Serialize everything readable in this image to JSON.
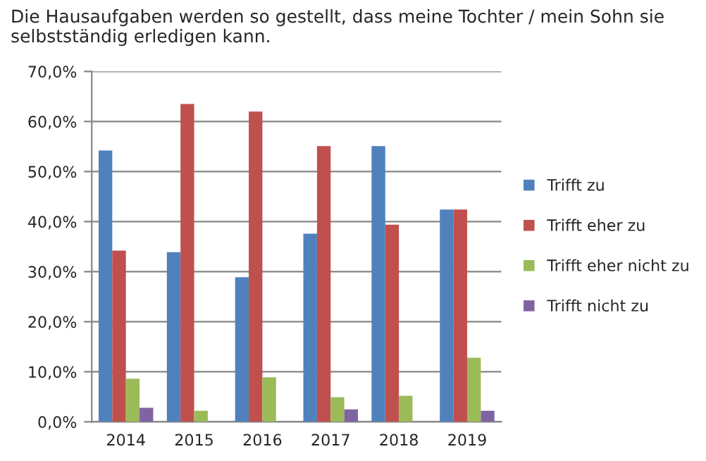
{
  "chart_data": {
    "type": "bar",
    "title": "Die Hausaufgaben werden so gestellt, dass meine Tochter / mein Sohn sie selbstständig erledigen kann.",
    "categories": [
      "2014",
      "2015",
      "2016",
      "2017",
      "2018",
      "2019"
    ],
    "series": [
      {
        "name": "Trifft zu",
        "color": "#4f81bd",
        "values": [
          54.2,
          33.9,
          28.9,
          37.6,
          55.1,
          42.4
        ]
      },
      {
        "name": "Trifft eher zu",
        "color": "#c0504d",
        "values": [
          34.2,
          63.5,
          62.0,
          55.1,
          39.4,
          42.4
        ]
      },
      {
        "name": "Trifft eher nicht zu",
        "color": "#9bbb59",
        "values": [
          8.6,
          2.2,
          8.9,
          4.9,
          5.2,
          12.8
        ]
      },
      {
        "name": "Trifft nicht zu",
        "color": "#8064a2",
        "values": [
          2.8,
          null,
          null,
          2.5,
          null,
          2.2
        ]
      }
    ],
    "ylim": [
      0,
      70
    ],
    "yticks": [
      {
        "value": 0,
        "label": "0,0%"
      },
      {
        "value": 10,
        "label": "10,0%"
      },
      {
        "value": 20,
        "label": "20,0%"
      },
      {
        "value": 30,
        "label": "30,0%"
      },
      {
        "value": 40,
        "label": "40,0%"
      },
      {
        "value": 50,
        "label": "50,0%"
      },
      {
        "value": 60,
        "label": "60,0%"
      },
      {
        "value": 70,
        "label": "70,0%"
      }
    ],
    "grid": "y",
    "legend": "right"
  }
}
